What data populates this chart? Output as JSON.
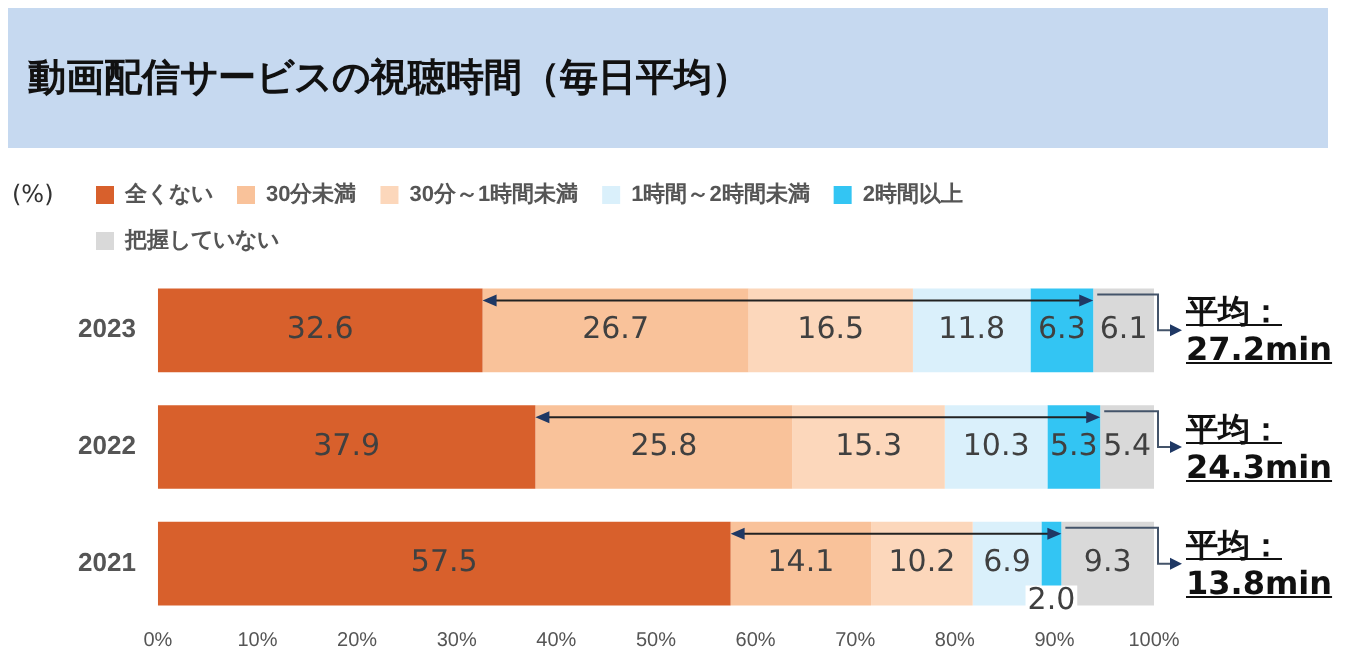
{
  "chart_data": {
    "type": "bar",
    "orientation": "horizontal",
    "stacked": true,
    "title": "動画配信サービスの視聴時間（毎日平均）",
    "xlabel": "(%)",
    "categories": [
      "2023",
      "2022",
      "2021"
    ],
    "series": [
      {
        "name": "全くない",
        "color": "#d8602c",
        "values": [
          32.6,
          37.9,
          57.5
        ],
        "value_labels": [
          "32.6",
          "37.9",
          "57.5"
        ]
      },
      {
        "name": "30分未満",
        "color": "#f9c29a",
        "values": [
          26.7,
          25.8,
          14.1
        ],
        "value_labels": [
          "26.7",
          "25.8",
          "14.1"
        ]
      },
      {
        "name": "30分～1時間未満",
        "color": "#fcd7bb",
        "values": [
          16.5,
          15.3,
          10.2
        ],
        "value_labels": [
          "16.5",
          "15.3",
          "10.2"
        ]
      },
      {
        "name": "1時間～2時間未満",
        "color": "#daf0fb",
        "values": [
          11.8,
          10.3,
          6.9
        ],
        "value_labels": [
          "11.8",
          "10.3",
          "6.9"
        ]
      },
      {
        "name": "2時間以上",
        "color": "#33c5f3",
        "values": [
          6.3,
          5.3,
          2.0
        ],
        "value_labels": [
          "6.3",
          "5.3",
          "2.0"
        ]
      },
      {
        "name": "把握していない",
        "color": "#d9d9d9",
        "values": [
          6.1,
          5.4,
          9.3
        ],
        "value_labels": [
          "6.1",
          "5.4",
          "9.3"
        ]
      }
    ],
    "xlim": [
      0,
      100
    ],
    "xticks": [
      {
        "value": 0,
        "label": "0%"
      },
      {
        "value": 10,
        "label": "10%"
      },
      {
        "value": 20,
        "label": "20%"
      },
      {
        "value": 30,
        "label": "30%"
      },
      {
        "value": 40,
        "label": "40%"
      },
      {
        "value": 50,
        "label": "50%"
      },
      {
        "value": 60,
        "label": "60%"
      },
      {
        "value": 70,
        "label": "70%"
      },
      {
        "value": 80,
        "label": "80%"
      },
      {
        "value": 90,
        "label": "90%"
      },
      {
        "value": 100,
        "label": "100%"
      }
    ],
    "legend": "top",
    "annotations": [
      "平均：27.2min",
      "平均：24.3min",
      "平均：13.8min"
    ]
  }
}
